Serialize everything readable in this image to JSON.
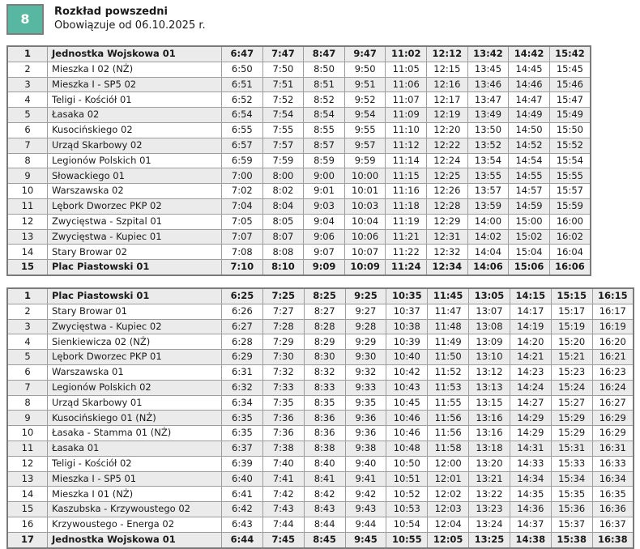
{
  "header": {
    "line_number": "8",
    "title": "Rozkład powszedni",
    "subtitle": "Obowiązuje od 06.10.2025 r.",
    "badge_color": "#58b7a1"
  },
  "tables": [
    {
      "rows": [
        {
          "no": "1",
          "stop": "Jednostka Wojskowa 01",
          "bold": true,
          "times": [
            "6:47",
            "7:47",
            "8:47",
            "9:47",
            "11:02",
            "12:12",
            "13:42",
            "14:42",
            "15:42"
          ]
        },
        {
          "no": "2",
          "stop": "Mieszka I 02 (NŻ)",
          "bold": false,
          "times": [
            "6:50",
            "7:50",
            "8:50",
            "9:50",
            "11:05",
            "12:15",
            "13:45",
            "14:45",
            "15:45"
          ]
        },
        {
          "no": "3",
          "stop": "Mieszka I - SP5 02",
          "bold": false,
          "times": [
            "6:51",
            "7:51",
            "8:51",
            "9:51",
            "11:06",
            "12:16",
            "13:46",
            "14:46",
            "15:46"
          ]
        },
        {
          "no": "4",
          "stop": "Teligi - Kościół 01",
          "bold": false,
          "times": [
            "6:52",
            "7:52",
            "8:52",
            "9:52",
            "11:07",
            "12:17",
            "13:47",
            "14:47",
            "15:47"
          ]
        },
        {
          "no": "5",
          "stop": "Łasaka 02",
          "bold": false,
          "times": [
            "6:54",
            "7:54",
            "8:54",
            "9:54",
            "11:09",
            "12:19",
            "13:49",
            "14:49",
            "15:49"
          ]
        },
        {
          "no": "6",
          "stop": "Kusocińskiego 02",
          "bold": false,
          "times": [
            "6:55",
            "7:55",
            "8:55",
            "9:55",
            "11:10",
            "12:20",
            "13:50",
            "14:50",
            "15:50"
          ]
        },
        {
          "no": "7",
          "stop": "Urząd Skarbowy 02",
          "bold": false,
          "times": [
            "6:57",
            "7:57",
            "8:57",
            "9:57",
            "11:12",
            "12:22",
            "13:52",
            "14:52",
            "15:52"
          ]
        },
        {
          "no": "8",
          "stop": "Legionów Polskich 01",
          "bold": false,
          "times": [
            "6:59",
            "7:59",
            "8:59",
            "9:59",
            "11:14",
            "12:24",
            "13:54",
            "14:54",
            "15:54"
          ]
        },
        {
          "no": "9",
          "stop": "Słowackiego 01",
          "bold": false,
          "times": [
            "7:00",
            "8:00",
            "9:00",
            "10:00",
            "11:15",
            "12:25",
            "13:55",
            "14:55",
            "15:55"
          ]
        },
        {
          "no": "10",
          "stop": "Warszawska 02",
          "bold": false,
          "times": [
            "7:02",
            "8:02",
            "9:01",
            "10:01",
            "11:16",
            "12:26",
            "13:57",
            "14:57",
            "15:57"
          ]
        },
        {
          "no": "11",
          "stop": "Lębork Dworzec PKP 02",
          "bold": false,
          "times": [
            "7:04",
            "8:04",
            "9:03",
            "10:03",
            "11:18",
            "12:28",
            "13:59",
            "14:59",
            "15:59"
          ]
        },
        {
          "no": "12",
          "stop": "Zwycięstwa - Szpital 01",
          "bold": false,
          "times": [
            "7:05",
            "8:05",
            "9:04",
            "10:04",
            "11:19",
            "12:29",
            "14:00",
            "15:00",
            "16:00"
          ]
        },
        {
          "no": "13",
          "stop": "Zwycięstwa - Kupiec 01",
          "bold": false,
          "times": [
            "7:07",
            "8:07",
            "9:06",
            "10:06",
            "11:21",
            "12:31",
            "14:02",
            "15:02",
            "16:02"
          ]
        },
        {
          "no": "14",
          "stop": "Stary Browar 02",
          "bold": false,
          "times": [
            "7:08",
            "8:08",
            "9:07",
            "10:07",
            "11:22",
            "12:32",
            "14:04",
            "15:04",
            "16:04"
          ]
        },
        {
          "no": "15",
          "stop": "Plac Piastowski 01",
          "bold": true,
          "times": [
            "7:10",
            "8:10",
            "9:09",
            "10:09",
            "11:24",
            "12:34",
            "14:06",
            "15:06",
            "16:06"
          ]
        }
      ]
    },
    {
      "rows": [
        {
          "no": "1",
          "stop": "Plac Piastowski 01",
          "bold": true,
          "times": [
            "6:25",
            "7:25",
            "8:25",
            "9:25",
            "10:35",
            "11:45",
            "13:05",
            "14:15",
            "15:15",
            "16:15"
          ]
        },
        {
          "no": "2",
          "stop": "Stary Browar 01",
          "bold": false,
          "times": [
            "6:26",
            "7:27",
            "8:27",
            "9:27",
            "10:37",
            "11:47",
            "13:07",
            "14:17",
            "15:17",
            "16:17"
          ]
        },
        {
          "no": "3",
          "stop": "Zwycięstwa - Kupiec 02",
          "bold": false,
          "times": [
            "6:27",
            "7:28",
            "8:28",
            "9:28",
            "10:38",
            "11:48",
            "13:08",
            "14:19",
            "15:19",
            "16:19"
          ]
        },
        {
          "no": "4",
          "stop": "Sienkiewicza 02 (NŻ)",
          "bold": false,
          "times": [
            "6:28",
            "7:29",
            "8:29",
            "9:29",
            "10:39",
            "11:49",
            "13:09",
            "14:20",
            "15:20",
            "16:20"
          ]
        },
        {
          "no": "5",
          "stop": "Lębork Dworzec PKP 01",
          "bold": false,
          "times": [
            "6:29",
            "7:30",
            "8:30",
            "9:30",
            "10:40",
            "11:50",
            "13:10",
            "14:21",
            "15:21",
            "16:21"
          ]
        },
        {
          "no": "6",
          "stop": "Warszawska 01",
          "bold": false,
          "times": [
            "6:31",
            "7:32",
            "8:32",
            "9:32",
            "10:42",
            "11:52",
            "13:12",
            "14:23",
            "15:23",
            "16:23"
          ]
        },
        {
          "no": "7",
          "stop": "Legionów Polskich 02",
          "bold": false,
          "times": [
            "6:32",
            "7:33",
            "8:33",
            "9:33",
            "10:43",
            "11:53",
            "13:13",
            "14:24",
            "15:24",
            "16:24"
          ]
        },
        {
          "no": "8",
          "stop": "Urząd Skarbowy 01",
          "bold": false,
          "times": [
            "6:34",
            "7:35",
            "8:35",
            "9:35",
            "10:45",
            "11:55",
            "13:15",
            "14:27",
            "15:27",
            "16:27"
          ]
        },
        {
          "no": "9",
          "stop": "Kusocińskiego 01 (NŻ)",
          "bold": false,
          "times": [
            "6:35",
            "7:36",
            "8:36",
            "9:36",
            "10:46",
            "11:56",
            "13:16",
            "14:29",
            "15:29",
            "16:29"
          ]
        },
        {
          "no": "10",
          "stop": "Łasaka - Stamma 01 (NŻ)",
          "bold": false,
          "times": [
            "6:35",
            "7:36",
            "8:36",
            "9:36",
            "10:46",
            "11:56",
            "13:16",
            "14:29",
            "15:29",
            "16:29"
          ]
        },
        {
          "no": "11",
          "stop": "Łasaka 01",
          "bold": false,
          "times": [
            "6:37",
            "7:38",
            "8:38",
            "9:38",
            "10:48",
            "11:58",
            "13:18",
            "14:31",
            "15:31",
            "16:31"
          ]
        },
        {
          "no": "12",
          "stop": "Teligi - Kościół 02",
          "bold": false,
          "times": [
            "6:39",
            "7:40",
            "8:40",
            "9:40",
            "10:50",
            "12:00",
            "13:20",
            "14:33",
            "15:33",
            "16:33"
          ]
        },
        {
          "no": "13",
          "stop": "Mieszka I - SP5 01",
          "bold": false,
          "times": [
            "6:40",
            "7:41",
            "8:41",
            "9:41",
            "10:51",
            "12:01",
            "13:21",
            "14:34",
            "15:34",
            "16:34"
          ]
        },
        {
          "no": "14",
          "stop": "Mieszka I 01 (NŻ)",
          "bold": false,
          "times": [
            "6:41",
            "7:42",
            "8:42",
            "9:42",
            "10:52",
            "12:02",
            "13:22",
            "14:35",
            "15:35",
            "16:35"
          ]
        },
        {
          "no": "15",
          "stop": "Kaszubska - Krzywoustego 02",
          "bold": false,
          "times": [
            "6:42",
            "7:43",
            "8:43",
            "9:43",
            "10:53",
            "12:03",
            "13:23",
            "14:36",
            "15:36",
            "16:36"
          ]
        },
        {
          "no": "16",
          "stop": "Krzywoustego - Energa 02",
          "bold": false,
          "times": [
            "6:43",
            "7:44",
            "8:44",
            "9:44",
            "10:54",
            "12:04",
            "13:24",
            "14:37",
            "15:37",
            "16:37"
          ]
        },
        {
          "no": "17",
          "stop": "Jednostka Wojskowa 01",
          "bold": true,
          "times": [
            "6:44",
            "7:45",
            "8:45",
            "9:45",
            "10:55",
            "12:05",
            "13:25",
            "14:38",
            "15:38",
            "16:38"
          ]
        }
      ]
    }
  ]
}
